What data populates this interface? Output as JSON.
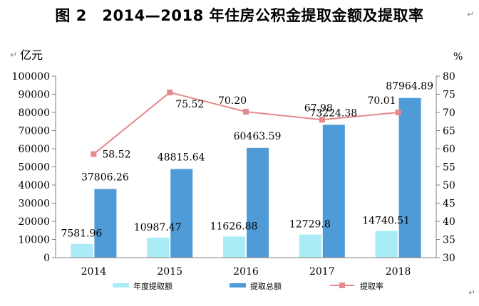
{
  "figure": {
    "title": "图 2　2014—2018 年住房公积金提取金额及提取率",
    "left_unit": "亿元",
    "right_unit": "%",
    "paragraph_mark": "↵"
  },
  "chart_data": {
    "type": "bar",
    "categories": [
      "2014",
      "2015",
      "2016",
      "2017",
      "2018"
    ],
    "series": [
      {
        "name": "年度提取额",
        "type": "bar",
        "axis": "left",
        "values": [
          7581.96,
          10987.47,
          11626.88,
          12729.8,
          14740.51
        ],
        "labels": [
          "7581.96",
          "10987.47",
          "11626.88",
          "12729.8",
          "14740.51"
        ]
      },
      {
        "name": "提取总额",
        "type": "bar",
        "axis": "left",
        "values": [
          37806.26,
          48815.64,
          60463.59,
          73224.38,
          87964.89
        ],
        "labels": [
          "37806.26",
          "48815.64",
          "60463.59",
          "73224.38",
          "87964.89"
        ]
      },
      {
        "name": "提取率",
        "type": "line",
        "axis": "right",
        "values": [
          58.52,
          75.52,
          70.2,
          67.98,
          70.01
        ],
        "labels": [
          "58.52",
          "75.52",
          "70.20",
          "67.98",
          "70.01"
        ]
      }
    ],
    "y_left": {
      "range": [
        0,
        100000
      ],
      "step": 10000,
      "ticks": [
        "0",
        "10000",
        "20000",
        "30000",
        "40000",
        "50000",
        "60000",
        "70000",
        "80000",
        "90000",
        "100000"
      ]
    },
    "y_right": {
      "range": [
        30,
        80
      ],
      "step": 5,
      "ticks": [
        "30",
        "35",
        "40",
        "45",
        "50",
        "55",
        "60",
        "65",
        "70",
        "75",
        "80"
      ]
    },
    "grid": false,
    "legend_position": "bottom",
    "colors": {
      "annual": "#a9ecf6",
      "total": "#4f9bd8",
      "rate": "#e5898c"
    }
  }
}
